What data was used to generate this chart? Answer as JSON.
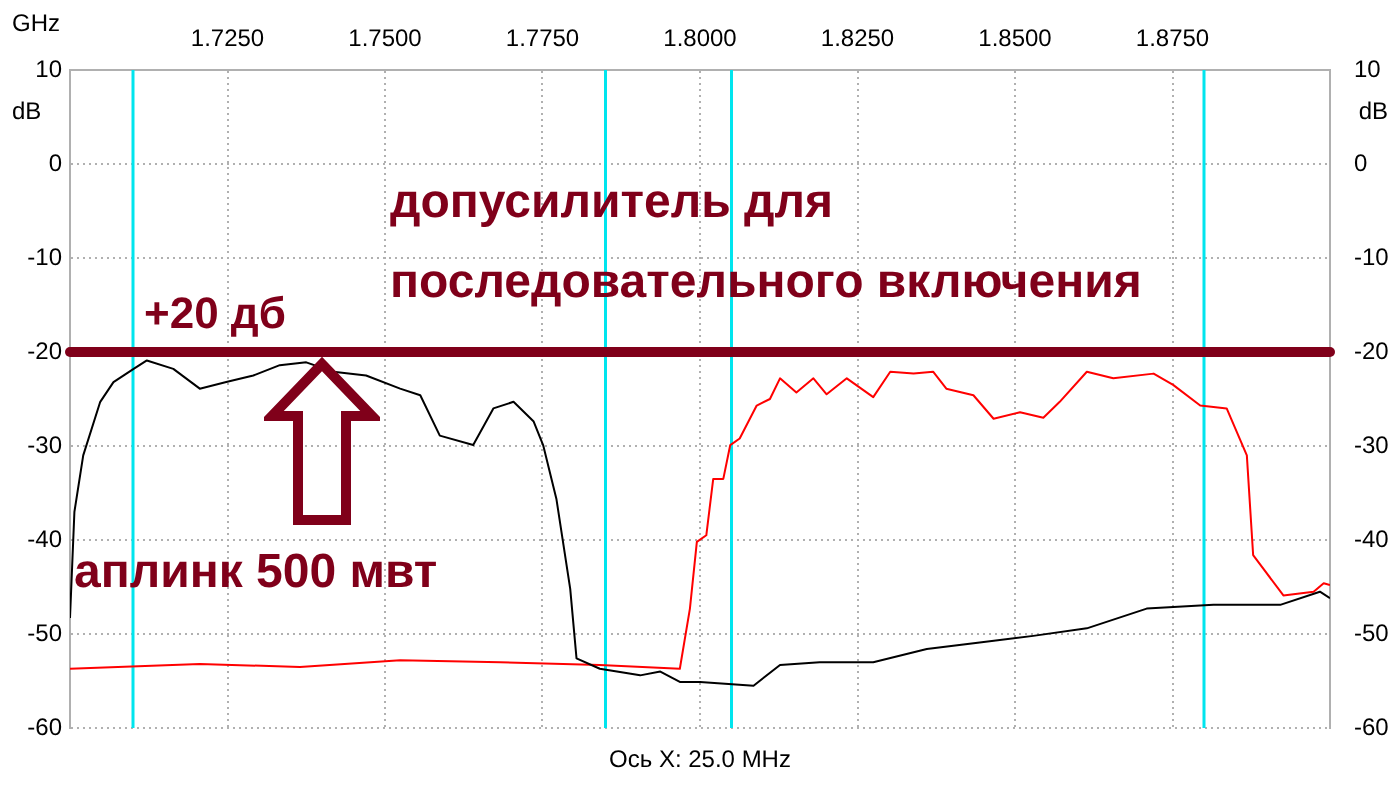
{
  "chart_data": {
    "type": "line",
    "xlabel": "GHz",
    "ylabel": "dB",
    "y2label": "dB",
    "xlim": [
      1.7,
      1.9
    ],
    "xticks": [
      {
        "value": 1.725,
        "label": "1.7250"
      },
      {
        "value": 1.75,
        "label": "1.7500"
      },
      {
        "value": 1.775,
        "label": "1.7750"
      },
      {
        "value": 1.8,
        "label": "1.8000"
      },
      {
        "value": 1.825,
        "label": "1.8250"
      },
      {
        "value": 1.85,
        "label": "1.8500"
      },
      {
        "value": 1.875,
        "label": "1.8750"
      }
    ],
    "ylim": [
      -60,
      10
    ],
    "yticks": [
      -60,
      -50,
      -40,
      -30,
      -20,
      -10,
      0,
      10
    ],
    "y2lim": [
      -60,
      10
    ],
    "y2ticks": [
      -60,
      -50,
      -40,
      -30,
      -20,
      -10,
      0,
      10
    ],
    "grid": true,
    "legend": false,
    "marker": "none",
    "line_style": "solid",
    "series": [
      {
        "color": "#000000",
        "x": [
          1.7,
          1.7007,
          1.7021,
          1.7048,
          1.7069,
          1.7101,
          1.7122,
          1.7164,
          1.7206,
          1.7248,
          1.7291,
          1.7333,
          1.7375,
          1.7418,
          1.747,
          1.7524,
          1.7556,
          1.7587,
          1.764,
          1.7672,
          1.7704,
          1.7736,
          1.7751,
          1.7772,
          1.7794,
          1.7804,
          1.7841,
          1.7905,
          1.7937,
          1.7968,
          1.8,
          1.8085,
          1.8127,
          1.819,
          1.8275,
          1.836,
          1.8444,
          1.8529,
          1.8614,
          1.8709,
          1.8815,
          1.8921,
          1.8984,
          1.9
        ],
        "values": [
          -48.3,
          -37,
          -31,
          -25.3,
          -23.2,
          -21.8,
          -20.9,
          -21.8,
          -23.9,
          -23.2,
          -22.5,
          -21.4,
          -21.1,
          -22.1,
          -22.5,
          -23.9,
          -24.6,
          -28.9,
          -29.9,
          -26,
          -25.3,
          -27.4,
          -29.9,
          -35.6,
          -45.2,
          -52.6,
          -53.7,
          -54.4,
          -54,
          -55.1,
          -55.1,
          -55.5,
          -53.3,
          -53,
          -53,
          -51.6,
          -50.9,
          -50.2,
          -49.4,
          -47.3,
          -46.9,
          -46.9,
          -45.5,
          -46.2
        ]
      },
      {
        "color": "#ff0000",
        "x": [
          1.7,
          1.7206,
          1.7365,
          1.7524,
          1.7683,
          1.7841,
          1.7968,
          1.7984,
          1.7995,
          1.801,
          1.8021,
          1.8037,
          1.8048,
          1.8063,
          1.809,
          1.8111,
          1.8127,
          1.8153,
          1.818,
          1.8201,
          1.8233,
          1.8275,
          1.8302,
          1.8339,
          1.837,
          1.8391,
          1.8434,
          1.8466,
          1.8508,
          1.8545,
          1.8571,
          1.8614,
          1.8656,
          1.872,
          1.8751,
          1.8794,
          1.8836,
          1.8868,
          1.8878,
          1.8926,
          1.8974,
          1.899,
          1.9
        ],
        "values": [
          -53.7,
          -53.2,
          -53.5,
          -52.8,
          -53,
          -53.3,
          -53.7,
          -47.3,
          -40.2,
          -39.5,
          -33.5,
          -33.5,
          -29.9,
          -29.2,
          -25.7,
          -25,
          -22.8,
          -24.3,
          -22.8,
          -24.5,
          -22.8,
          -24.8,
          -22.1,
          -22.3,
          -22.1,
          -23.9,
          -24.6,
          -27.1,
          -26.4,
          -27,
          -25.3,
          -22.1,
          -22.8,
          -22.3,
          -23.5,
          -25.7,
          -26,
          -31,
          -41.6,
          -45.9,
          -45.5,
          -44.6,
          -44.8
        ]
      }
    ],
    "ref_lines": [
      {
        "axis": "x",
        "value": 1.71,
        "color": "#00e5ee"
      },
      {
        "axis": "x",
        "value": 1.785,
        "color": "#00e5ee"
      },
      {
        "axis": "x",
        "value": 1.805,
        "color": "#00e5ee"
      },
      {
        "axis": "x",
        "value": 1.88,
        "color": "#00e5ee"
      },
      {
        "axis": "y",
        "value": -20,
        "color": "#80001a"
      }
    ],
    "annotations": [
      "+20 дб",
      "допусилитель для последовательного включения",
      "аплинк 500 мвт",
      "Ось X: 25.0 MHz"
    ]
  }
}
